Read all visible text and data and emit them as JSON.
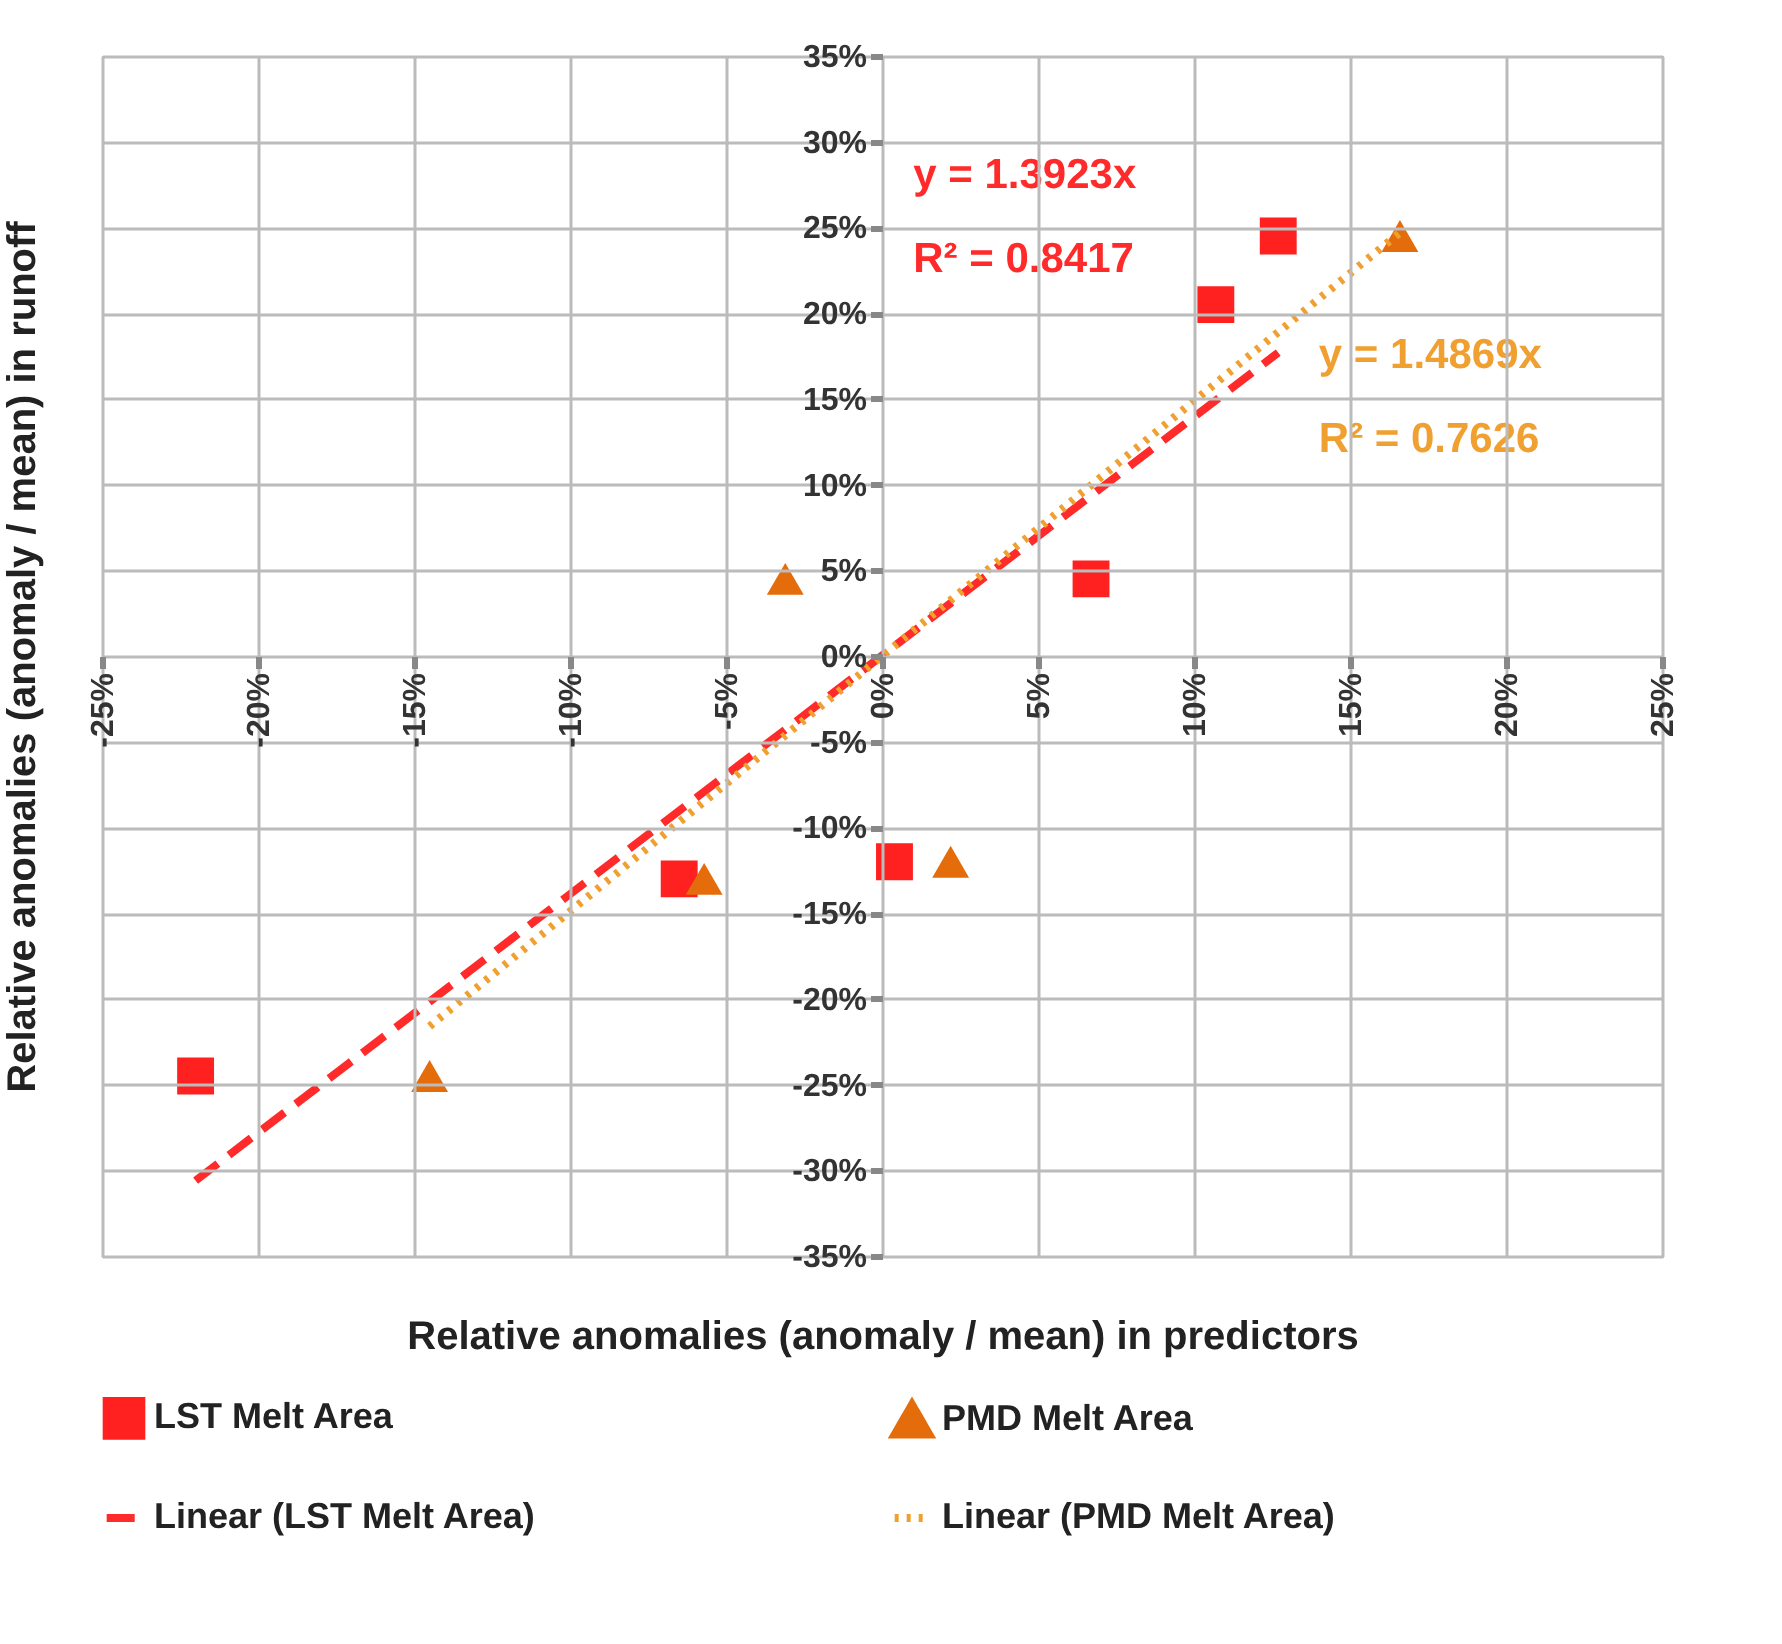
{
  "chart_data": {
    "type": "scatter",
    "xlabel": "Relative anomalies (anomaly / mean) in predictors",
    "ylabel": "Relative anomalies (anomaly / mean) in runoff",
    "series": [
      {
        "name": "LST Melt Area",
        "type": "scatter",
        "marker": "square",
        "color": "#ff2020",
        "x": [
          -22,
          -6.5,
          0.4,
          6.7,
          10.7,
          12.7
        ],
        "values": [
          -24.5,
          -13,
          -12,
          4.5,
          20.5,
          24.5
        ]
      },
      {
        "name": "PMD Melt Area",
        "type": "scatter",
        "marker": "triangle",
        "color": "#e46c0a",
        "x": [
          -14.5,
          -5.7,
          2.2,
          -3.1,
          16.6
        ],
        "values": [
          -24.5,
          -13,
          -12,
          4.5,
          24.5
        ]
      },
      {
        "name": "Linear (LST Melt Area)",
        "type": "line",
        "line_style": "dashed",
        "color": "#ff2a2a",
        "x": [
          -22,
          12.7
        ],
        "values": [
          -30.6,
          17.7
        ]
      },
      {
        "name": "Linear (PMD Melt Area)",
        "type": "line",
        "line_style": "dotted",
        "color": "#f0a030",
        "x": [
          -14.5,
          16.6
        ],
        "values": [
          -21.6,
          24.7
        ]
      }
    ],
    "annotations": [
      "y = 1.3923x",
      "R² = 0.8417",
      "y = 1.4869x",
      "R² = 0.7626"
    ],
    "xlim": [
      -25,
      25
    ],
    "xticks": [
      {
        "value": -25,
        "label": "-25%"
      },
      {
        "value": -20,
        "label": "-20%"
      },
      {
        "value": -15,
        "label": "-15%"
      },
      {
        "value": -10,
        "label": "-10%"
      },
      {
        "value": -5,
        "label": "-5%"
      },
      {
        "value": 0,
        "label": "0%"
      },
      {
        "value": 5,
        "label": "5%"
      },
      {
        "value": 10,
        "label": "10%"
      },
      {
        "value": 15,
        "label": "15%"
      },
      {
        "value": 20,
        "label": "20%"
      },
      {
        "value": 25,
        "label": "25%"
      }
    ],
    "ylim": [
      -35,
      35
    ],
    "yticks": [
      {
        "value": -35,
        "label": "-35%"
      },
      {
        "value": -30,
        "label": "-30%"
      },
      {
        "value": -25,
        "label": "-25%"
      },
      {
        "value": -20,
        "label": "-20%"
      },
      {
        "value": -15,
        "label": "-15%"
      },
      {
        "value": -10,
        "label": "-10%"
      },
      {
        "value": -5,
        "label": "-5%"
      },
      {
        "value": 0,
        "label": "0%"
      },
      {
        "value": 5,
        "label": "5%"
      },
      {
        "value": 10,
        "label": "10%"
      },
      {
        "value": 15,
        "label": "15%"
      },
      {
        "value": 20,
        "label": "20%"
      },
      {
        "value": 25,
        "label": "25%"
      },
      {
        "value": 30,
        "label": "30%"
      },
      {
        "value": 35,
        "label": "35%"
      }
    ],
    "grid": true,
    "legend": "bottom"
  }
}
